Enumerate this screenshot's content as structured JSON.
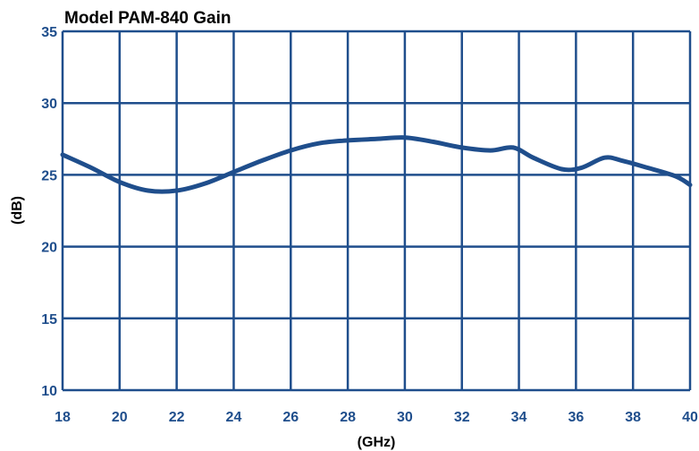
{
  "chart_data": {
    "type": "line",
    "title": "Model PAM-840 Gain",
    "xlabel": "(GHz)",
    "ylabel": "(dB)",
    "xlim": [
      18,
      40
    ],
    "ylim": [
      10,
      35
    ],
    "xticks": [
      18,
      20,
      22,
      24,
      26,
      28,
      30,
      32,
      34,
      36,
      38,
      40
    ],
    "yticks": [
      10,
      15,
      20,
      25,
      30,
      35
    ],
    "grid": true,
    "legend": "none",
    "colors": {
      "line": "#1f4e8c",
      "grid": "#1f4e8c",
      "tick_text": "#1f4e8c"
    },
    "series": [
      {
        "x": [
          18,
          19,
          20,
          21,
          22,
          23,
          24,
          25,
          26,
          27,
          28,
          29,
          30,
          31,
          32,
          33,
          33.8,
          34.5,
          35.5,
          36.2,
          37,
          37.6,
          38.5,
          39.5,
          40
        ],
        "y": [
          26.4,
          25.5,
          24.5,
          23.9,
          23.9,
          24.4,
          25.2,
          26.0,
          26.7,
          27.2,
          27.4,
          27.5,
          27.6,
          27.3,
          26.9,
          26.7,
          26.9,
          26.2,
          25.4,
          25.5,
          26.2,
          26.0,
          25.5,
          24.9,
          24.3
        ]
      }
    ]
  }
}
